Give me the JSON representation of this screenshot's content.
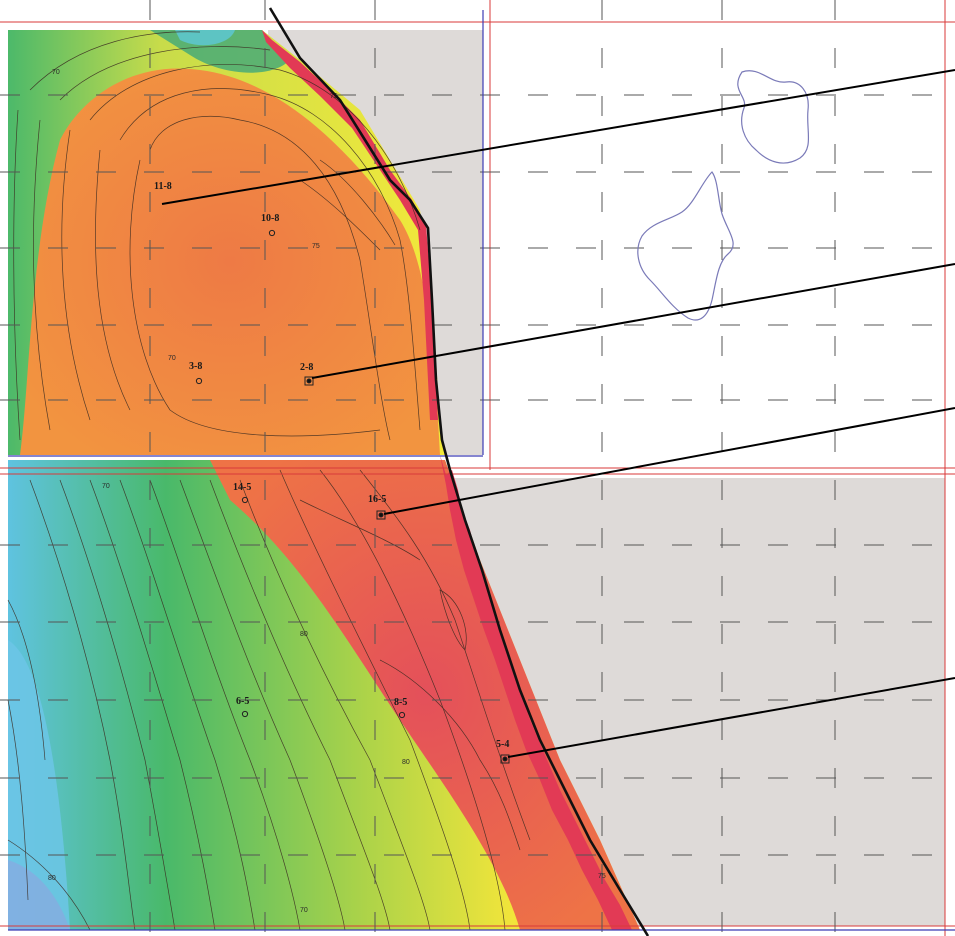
{
  "map": {
    "colors": {
      "background": "#ffffff",
      "block_shade": "#dedad8",
      "grid_red": "#d83a3a",
      "grid_dash": "#555555",
      "lease_blue": "#3c3cb4",
      "fault": "#111111",
      "contour": "#3a2a20",
      "leader": "#000000",
      "outline_blue": "#7a7ab8"
    },
    "wells": [
      {
        "id": "11-8",
        "symbol": "none"
      },
      {
        "id": "10-8",
        "symbol": "circle"
      },
      {
        "id": "3-8",
        "symbol": "circle"
      },
      {
        "id": "2-8",
        "symbol": "square-dot"
      },
      {
        "id": "14-5",
        "symbol": "circle"
      },
      {
        "id": "16-5",
        "symbol": "square-dot"
      },
      {
        "id": "6-5",
        "symbol": "circle"
      },
      {
        "id": "8-5",
        "symbol": "circle"
      },
      {
        "id": "5-4",
        "symbol": "square-dot"
      }
    ],
    "contour_labels": [
      "70",
      "75",
      "70",
      "75",
      "80",
      "70",
      "80",
      "75",
      "80",
      "70"
    ],
    "leaders": [
      {
        "from_well": "11-8"
      },
      {
        "from_well": "2-8"
      },
      {
        "from_well": "16-5"
      },
      {
        "from_well": "5-4"
      }
    ]
  }
}
